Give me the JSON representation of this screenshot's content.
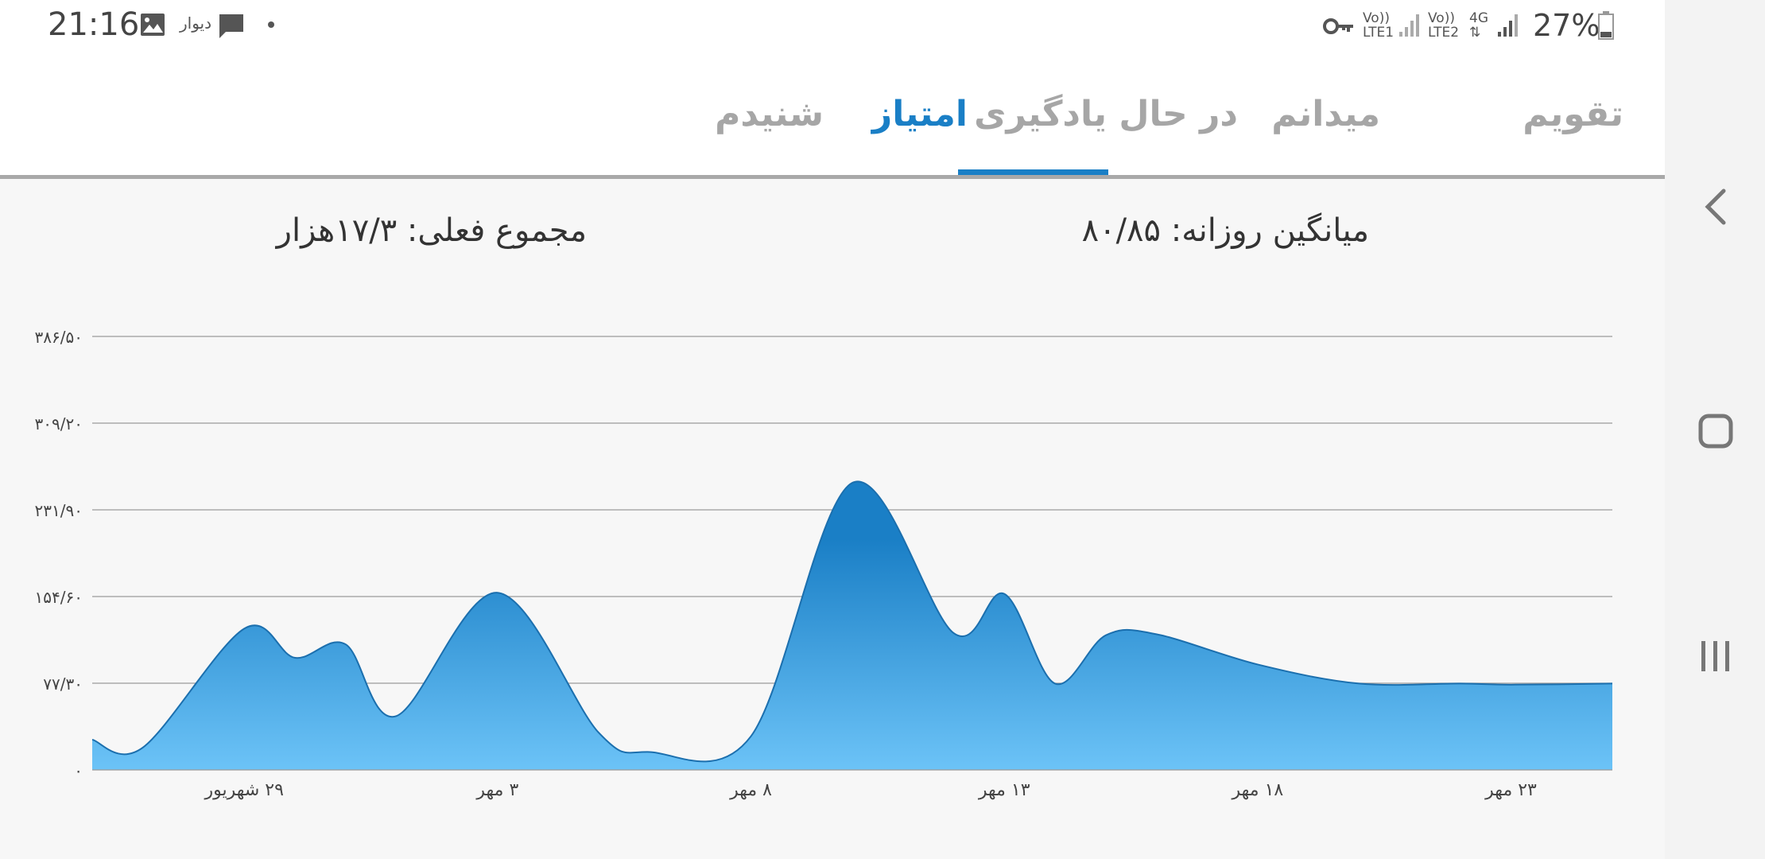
{
  "status_bar": {
    "time": "21:16",
    "app_label": "دیوار",
    "battery": "27%",
    "sim1_top": "Vo))",
    "sim1_bottom": "LTE1",
    "sim2_top": "Vo))",
    "sim2_bottom": "LTE2",
    "network": "4G",
    "icons": [
      "image-icon",
      "chat-icon",
      "dot-icon",
      "key-icon",
      "signal-icon",
      "battery-icon"
    ]
  },
  "tabs": [
    {
      "label": "تقویم",
      "active": false
    },
    {
      "label": "میدانم",
      "active": false
    },
    {
      "label": "در حال یادگیری",
      "active": false
    },
    {
      "label": "امتیاز",
      "active": true
    },
    {
      "label": "شنیدم",
      "active": false
    }
  ],
  "stats": {
    "daily_average": "میانگین روزانه: ۸۰/۸۵",
    "total": "مجموع فعلی: ۱۷/۳هزار"
  },
  "colors": {
    "accent": "#1a7fc6",
    "area_top": "#1a7fc6",
    "area_bottom": "#6cc3f7"
  },
  "chart_data": {
    "type": "area",
    "y_tick_labels": [
      "۰",
      "۷۷/۳۰",
      "۱۵۴/۶۰",
      "۲۳۱/۹۰",
      "۳۰۹/۲۰",
      "۳۸۶/۵۰"
    ],
    "y_ticks": [
      0,
      77.3,
      154.6,
      231.9,
      309.2,
      386.5
    ],
    "ylim": [
      0,
      386.5
    ],
    "x_tick_labels": [
      "۲۹ شهریور",
      "۳ مهر",
      "۸ مهر",
      "۱۳ مهر",
      "۱۸ مهر",
      "۲۳ مهر"
    ],
    "x_ticks": [
      3,
      8,
      13,
      18,
      23,
      28
    ],
    "xlim": [
      0,
      30
    ],
    "grid": true,
    "x": [
      0,
      1,
      3,
      4,
      5,
      6,
      8,
      10,
      11,
      13,
      15,
      17,
      18,
      19,
      20,
      21,
      23,
      25,
      27,
      28,
      30
    ],
    "values": [
      27,
      20,
      126,
      100,
      112,
      48,
      158,
      33,
      16,
      30,
      256,
      122,
      157,
      77,
      120,
      121,
      94,
      77,
      77,
      76,
      77
    ]
  },
  "nav": {
    "icons": [
      "back-icon",
      "home-icon",
      "recents-icon"
    ]
  }
}
